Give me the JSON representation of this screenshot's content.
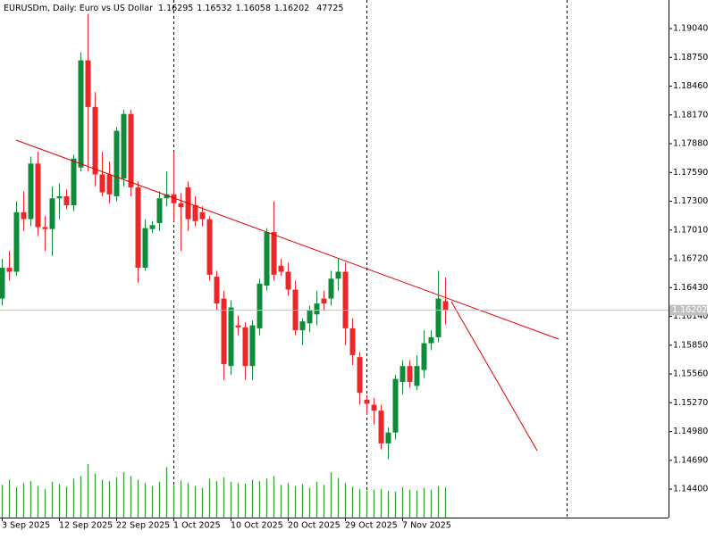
{
  "chart_data": {
    "type": "candlestick",
    "title": "EURUSDm, Daily:  Euro vs US Dollar",
    "categories": [
      "3 Sep 2025",
      null,
      null,
      null,
      null,
      null,
      null,
      null,
      "12 Sep 2025",
      null,
      null,
      null,
      null,
      null,
      null,
      null,
      "22 Sep 2025",
      null,
      null,
      null,
      null,
      null,
      null,
      null,
      "1 Oct 2025",
      null,
      null,
      null,
      null,
      null,
      null,
      null,
      "10 Oct 2025",
      null,
      null,
      null,
      null,
      null,
      null,
      null,
      "20 Oct 2025",
      null,
      null,
      null,
      null,
      null,
      null,
      null,
      "29 Oct 2025",
      null,
      null,
      null,
      null,
      null,
      null,
      null,
      "7 Nov 2025",
      null,
      null,
      null,
      null,
      null,
      null
    ],
    "open": [
      1.1632,
      1.1663,
      1.1659,
      1.1719,
      1.1712,
      1.1768,
      1.1704,
      1.1702,
      1.1733,
      1.1735,
      1.1726,
      1.1764,
      1.1872,
      1.1825,
      1.1757,
      1.1757,
      1.1735,
      1.1753,
      1.1818,
      1.1744,
      1.1663,
      1.1702,
      1.1708,
      1.1733,
      1.1737,
      1.1728,
      1.1744,
      1.1726,
      1.1719,
      1.1712,
      1.1654,
      1.1632,
      1.1564,
      1.1605,
      1.1603,
      1.1564,
      1.1602,
      1.1645,
      1.1699,
      1.1665,
      1.1659,
      1.1641,
      1.16,
      1.1607,
      1.1616,
      1.1632,
      1.1632,
      1.1652,
      1.1659,
      1.1602,
      1.1573,
      1.153,
      1.1525,
      1.1519,
      1.1486,
      1.1497,
      1.1548,
      1.1564,
      1.1544,
      1.156,
      1.1587,
      1.1593,
      1.16295
    ],
    "high": [
      1.1672,
      1.168,
      1.173,
      1.174,
      1.1775,
      1.178,
      1.1715,
      1.1745,
      1.1748,
      1.1742,
      1.1777,
      1.188,
      1.1919,
      1.184,
      1.178,
      1.177,
      1.1805,
      1.1822,
      1.1822,
      1.175,
      1.1712,
      1.171,
      1.174,
      1.176,
      1.178,
      1.1738,
      1.175,
      1.1735,
      1.1725,
      1.1715,
      1.166,
      1.164,
      1.163,
      1.1615,
      1.1608,
      1.161,
      1.1652,
      1.1703,
      1.173,
      1.1672,
      1.1668,
      1.165,
      1.1612,
      1.1625,
      1.164,
      1.164,
      1.166,
      1.1672,
      1.1668,
      1.1612,
      1.1578,
      1.1535,
      1.1532,
      1.1525,
      1.1502,
      1.1555,
      1.157,
      1.157,
      1.1575,
      1.16,
      1.16,
      1.166,
      1.16532
    ],
    "low": [
      1.1625,
      1.165,
      1.1655,
      1.17,
      1.1705,
      1.1695,
      1.168,
      1.1675,
      1.1712,
      1.1722,
      1.172,
      1.176,
      1.176,
      1.1745,
      1.1735,
      1.1728,
      1.173,
      1.1745,
      1.1735,
      1.1648,
      1.166,
      1.1698,
      1.17,
      1.1725,
      1.171,
      1.168,
      1.17,
      1.1705,
      1.1705,
      1.165,
      1.162,
      1.155,
      1.1555,
      1.1595,
      1.155,
      1.155,
      1.1595,
      1.164,
      1.165,
      1.1655,
      1.1635,
      1.1595,
      1.1585,
      1.1598,
      1.1605,
      1.162,
      1.1625,
      1.164,
      1.1585,
      1.1565,
      1.1525,
      1.1515,
      1.1505,
      1.148,
      1.147,
      1.149,
      1.1535,
      1.1542,
      1.154,
      1.1552,
      1.158,
      1.1588,
      1.16058
    ],
    "close": [
      1.1663,
      1.1659,
      1.1719,
      1.1712,
      1.1768,
      1.1704,
      1.1702,
      1.1733,
      1.1735,
      1.1726,
      1.1773,
      1.1872,
      1.1825,
      1.1757,
      1.1739,
      1.1737,
      1.1801,
      1.1818,
      1.1744,
      1.1663,
      1.1703,
      1.1706,
      1.1733,
      1.1737,
      1.1728,
      1.1724,
      1.1712,
      1.171,
      1.1712,
      1.1656,
      1.1627,
      1.1566,
      1.1623,
      1.1603,
      1.1564,
      1.1605,
      1.1647,
      1.1699,
      1.1656,
      1.1659,
      1.1641,
      1.16,
      1.1609,
      1.162,
      1.1627,
      1.1627,
      1.1652,
      1.1659,
      1.1602,
      1.1575,
      1.1537,
      1.1526,
      1.1519,
      1.1486,
      1.1497,
      1.1551,
      1.1564,
      1.1548,
      1.1564,
      1.1587,
      1.1593,
      1.1632,
      1.16202
    ],
    "volume": [
      52000,
      60000,
      48000,
      55000,
      58000,
      50000,
      45000,
      57000,
      53000,
      49000,
      62000,
      66000,
      85000,
      70000,
      60000,
      58000,
      64000,
      72000,
      66000,
      60000,
      55000,
      50000,
      57000,
      80000,
      52000,
      59000,
      55000,
      50000,
      47000,
      62000,
      58000,
      64000,
      57000,
      55000,
      54000,
      60000,
      58000,
      62000,
      66000,
      52000,
      55000,
      50000,
      53000,
      47000,
      57000,
      52000,
      72000,
      63000,
      55000,
      49000,
      45000,
      43000,
      44000,
      45000,
      42000,
      41000,
      48000,
      44000,
      43000,
      47000,
      44000,
      50000,
      47725
    ],
    "ylim": [
      1.14113,
      1.19328
    ],
    "yticks": [
      {
        "value": 1.1904,
        "label": "1.19040"
      },
      {
        "value": 1.1875,
        "label": "1.18750"
      },
      {
        "value": 1.1846,
        "label": "1.18460"
      },
      {
        "value": 1.1817,
        "label": "1.18170"
      },
      {
        "value": 1.1788,
        "label": "1.17880"
      },
      {
        "value": 1.1759,
        "label": "1.17590"
      },
      {
        "value": 1.173,
        "label": "1.17300"
      },
      {
        "value": 1.1701,
        "label": "1.17010"
      },
      {
        "value": 1.1672,
        "label": "1.16720"
      },
      {
        "value": 1.1643,
        "label": "1.16430"
      },
      {
        "value": 1.1614,
        "label": "1.16140"
      },
      {
        "value": 1.1585,
        "label": "1.15850"
      },
      {
        "value": 1.1556,
        "label": "1.15560"
      },
      {
        "value": 1.1527,
        "label": "1.15270"
      },
      {
        "value": 1.1498,
        "label": "1.14980"
      },
      {
        "value": 1.1469,
        "label": "1.14690"
      },
      {
        "value": 1.144,
        "label": "1.14400"
      }
    ],
    "up_color": "#118a3c",
    "down_color": "#e8282a",
    "volume_color": "#2e9a2e"
  }
}
